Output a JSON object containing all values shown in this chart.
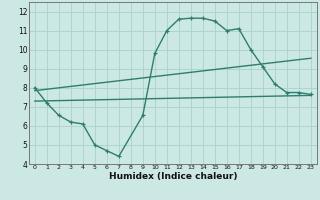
{
  "title": "",
  "xlabel": "Humidex (Indice chaleur)",
  "ylabel": "",
  "bg_color": "#cce8e4",
  "line_color": "#2e7d6e",
  "grid_color": "#aacfcc",
  "xlim": [
    -0.5,
    23.5
  ],
  "ylim": [
    4,
    12.5
  ],
  "xticks": [
    0,
    1,
    2,
    3,
    4,
    5,
    6,
    7,
    8,
    9,
    10,
    11,
    12,
    13,
    14,
    15,
    16,
    17,
    18,
    19,
    20,
    21,
    22,
    23
  ],
  "yticks": [
    4,
    5,
    6,
    7,
    8,
    9,
    10,
    11,
    12
  ],
  "curve1_x": [
    0,
    1,
    2,
    3,
    4,
    5,
    6,
    7,
    9,
    10,
    11,
    12,
    13,
    14,
    15,
    16,
    17,
    18,
    19,
    20,
    21,
    22,
    23
  ],
  "curve1_y": [
    8.0,
    7.2,
    6.55,
    6.2,
    6.1,
    5.0,
    4.7,
    4.4,
    6.55,
    9.8,
    11.0,
    11.6,
    11.65,
    11.65,
    11.5,
    11.0,
    11.1,
    10.0,
    9.1,
    8.2,
    7.75,
    7.75,
    7.65
  ],
  "curve2_x": [
    0,
    23
  ],
  "curve2_y": [
    7.3,
    7.6
  ],
  "curve3_x": [
    0,
    23
  ],
  "curve3_y": [
    7.85,
    9.55
  ],
  "lw": 1.0,
  "marker_size": 3.5,
  "xlabel_fontsize": 6.5,
  "tick_fontsize": 5.0
}
